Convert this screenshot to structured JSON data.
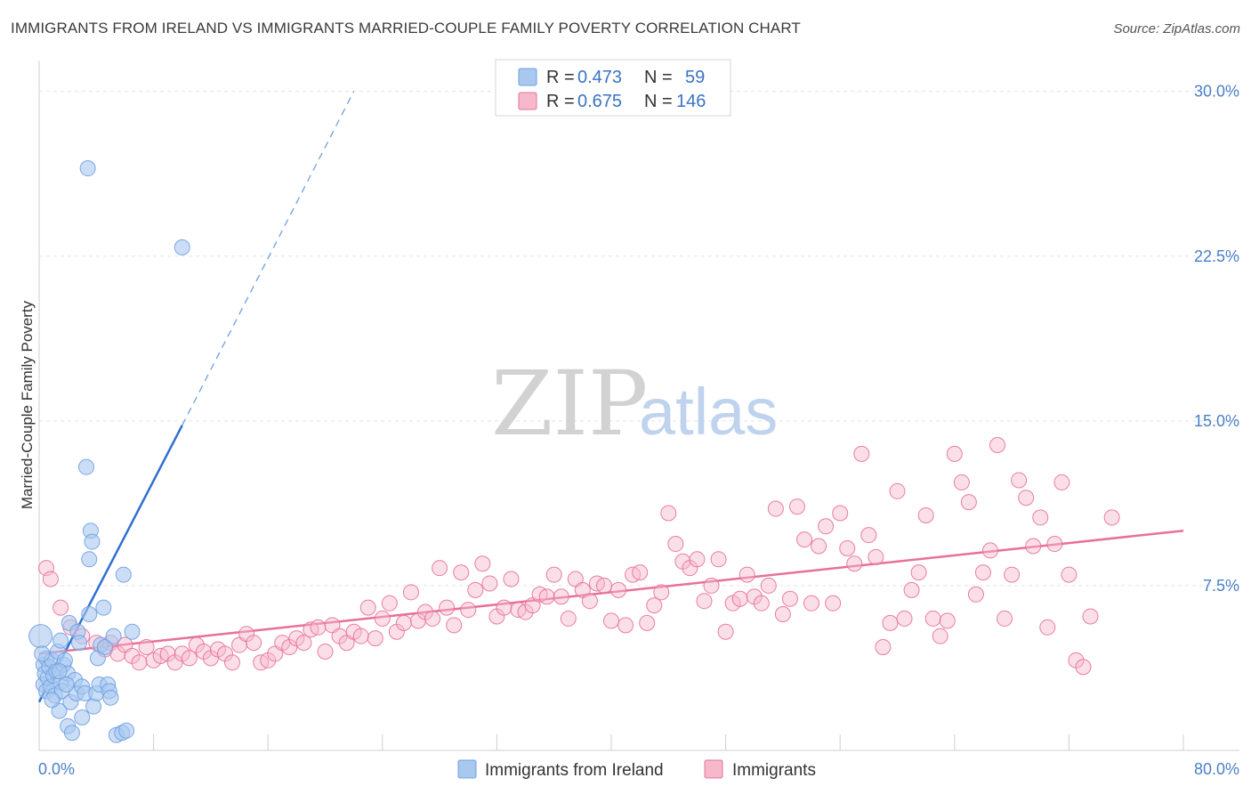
{
  "title": "IMMIGRANTS FROM IRELAND VS IMMIGRANTS MARRIED-COUPLE FAMILY POVERTY CORRELATION CHART",
  "source": "Source: ZipAtlas.com",
  "watermark": {
    "zip": "ZIP",
    "atlas": "atlas"
  },
  "legend_top": [
    {
      "r_label": "R =",
      "r_value": "0.473",
      "n_label": "N =",
      "n_value": "59",
      "color": "#a9c8f0"
    },
    {
      "r_label": "R =",
      "r_value": "0.675",
      "n_label": "N =",
      "n_value": "146",
      "color": "#f6b8cb"
    }
  ],
  "chart_data": {
    "type": "scatter",
    "title": "IMMIGRANTS FROM IRELAND VS IMMIGRANTS MARRIED-COUPLE FAMILY POVERTY CORRELATION CHART",
    "xlabel": "",
    "ylabel": "Married-Couple Family Poverty",
    "xlim": [
      0,
      80
    ],
    "ylim": [
      0,
      31
    ],
    "x_tick_labels": [
      "0.0%",
      "80.0%"
    ],
    "y_ticks": [
      7.5,
      15.0,
      22.5,
      30.0
    ],
    "y_tick_labels": [
      "7.5%",
      "15.0%",
      "22.5%",
      "30.0%"
    ],
    "grid": true,
    "legend_position": "bottom-center",
    "series": [
      {
        "name": "Immigrants from Ireland",
        "color": "#6fa0e0",
        "fill": "#a9c8f0",
        "trend": {
          "x0": 0,
          "y0": 2.2,
          "x1": 10,
          "y1": 14.8,
          "dash_to_x": 22,
          "dash_to_y": 30.0
        },
        "points": [
          [
            0.1,
            5.2
          ],
          [
            0.3,
            3.9
          ],
          [
            0.3,
            3.0
          ],
          [
            0.4,
            3.5
          ],
          [
            0.5,
            2.7
          ],
          [
            0.5,
            4.2
          ],
          [
            0.6,
            3.3
          ],
          [
            0.7,
            3.8
          ],
          [
            0.8,
            2.9
          ],
          [
            0.9,
            4.1
          ],
          [
            1.0,
            3.4
          ],
          [
            1.1,
            2.5
          ],
          [
            1.2,
            3.6
          ],
          [
            1.3,
            4.5
          ],
          [
            1.4,
            1.8
          ],
          [
            1.5,
            3.1
          ],
          [
            1.5,
            5.0
          ],
          [
            1.6,
            2.7
          ],
          [
            1.7,
            3.9
          ],
          [
            1.8,
            4.1
          ],
          [
            2.0,
            1.1
          ],
          [
            2.0,
            3.5
          ],
          [
            2.1,
            5.8
          ],
          [
            2.2,
            2.2
          ],
          [
            2.3,
            0.8
          ],
          [
            2.5,
            3.2
          ],
          [
            2.6,
            2.6
          ],
          [
            2.7,
            5.4
          ],
          [
            2.8,
            4.9
          ],
          [
            3.0,
            1.5
          ],
          [
            3.0,
            2.9
          ],
          [
            3.2,
            2.6
          ],
          [
            3.3,
            12.9
          ],
          [
            3.5,
            6.2
          ],
          [
            3.6,
            10.0
          ],
          [
            3.7,
            9.5
          ],
          [
            3.8,
            2.0
          ],
          [
            3.5,
            8.7
          ],
          [
            4.0,
            2.6
          ],
          [
            4.1,
            4.2
          ],
          [
            4.2,
            3.0
          ],
          [
            4.3,
            4.8
          ],
          [
            4.5,
            6.5
          ],
          [
            4.6,
            4.7
          ],
          [
            4.8,
            3.0
          ],
          [
            4.9,
            2.7
          ],
          [
            5.0,
            2.4
          ],
          [
            5.2,
            5.2
          ],
          [
            5.4,
            0.7
          ],
          [
            5.8,
            0.8
          ],
          [
            5.9,
            8.0
          ],
          [
            6.1,
            0.9
          ],
          [
            6.5,
            5.4
          ],
          [
            3.4,
            26.5
          ],
          [
            10.0,
            22.9
          ],
          [
            1.4,
            3.6
          ],
          [
            0.2,
            4.4
          ],
          [
            0.9,
            2.3
          ],
          [
            1.9,
            3.0
          ]
        ]
      },
      {
        "name": "Immigrants",
        "color": "#e8709a",
        "fill": "#f6b8cb",
        "trend": {
          "x0": 0,
          "y0": 4.4,
          "x1": 80,
          "y1": 10.0
        },
        "points": [
          [
            0.5,
            8.3
          ],
          [
            0.8,
            7.8
          ],
          [
            1.5,
            6.5
          ],
          [
            2.2,
            5.6
          ],
          [
            3.0,
            5.2
          ],
          [
            4.0,
            4.9
          ],
          [
            4.6,
            4.6
          ],
          [
            5.0,
            4.9
          ],
          [
            5.5,
            4.4
          ],
          [
            6.0,
            4.8
          ],
          [
            6.5,
            4.3
          ],
          [
            7.0,
            4.0
          ],
          [
            7.5,
            4.7
          ],
          [
            8.0,
            4.1
          ],
          [
            8.5,
            4.3
          ],
          [
            9.0,
            4.4
          ],
          [
            9.5,
            4.0
          ],
          [
            10.0,
            4.4
          ],
          [
            10.5,
            4.2
          ],
          [
            11.0,
            4.8
          ],
          [
            11.5,
            4.5
          ],
          [
            12.0,
            4.2
          ],
          [
            12.5,
            4.6
          ],
          [
            13.0,
            4.4
          ],
          [
            13.5,
            4.0
          ],
          [
            14.0,
            4.8
          ],
          [
            14.5,
            5.3
          ],
          [
            15.0,
            4.9
          ],
          [
            15.5,
            4.0
          ],
          [
            16.0,
            4.1
          ],
          [
            16.5,
            4.4
          ],
          [
            17.0,
            4.9
          ],
          [
            17.5,
            4.7
          ],
          [
            18.0,
            5.1
          ],
          [
            18.5,
            4.9
          ],
          [
            19.0,
            5.5
          ],
          [
            19.5,
            5.6
          ],
          [
            20.0,
            4.5
          ],
          [
            20.5,
            5.7
          ],
          [
            21.0,
            5.2
          ],
          [
            21.5,
            4.9
          ],
          [
            22.0,
            5.4
          ],
          [
            22.5,
            5.2
          ],
          [
            23.0,
            6.5
          ],
          [
            23.5,
            5.1
          ],
          [
            24.0,
            6.0
          ],
          [
            24.5,
            6.7
          ],
          [
            25.0,
            5.4
          ],
          [
            25.5,
            5.8
          ],
          [
            26.0,
            7.2
          ],
          [
            26.5,
            5.9
          ],
          [
            27.0,
            6.3
          ],
          [
            27.5,
            6.0
          ],
          [
            28.0,
            8.3
          ],
          [
            28.5,
            6.5
          ],
          [
            29.0,
            5.7
          ],
          [
            29.5,
            8.1
          ],
          [
            30.0,
            6.4
          ],
          [
            30.5,
            7.3
          ],
          [
            31.0,
            8.5
          ],
          [
            31.5,
            7.6
          ],
          [
            32.0,
            6.1
          ],
          [
            32.5,
            6.5
          ],
          [
            33.0,
            7.8
          ],
          [
            33.5,
            6.4
          ],
          [
            34.0,
            6.3
          ],
          [
            34.5,
            6.6
          ],
          [
            35.0,
            7.1
          ],
          [
            35.5,
            7.0
          ],
          [
            36.0,
            8.0
          ],
          [
            36.5,
            7.0
          ],
          [
            37.0,
            6.0
          ],
          [
            37.5,
            7.8
          ],
          [
            38.0,
            7.3
          ],
          [
            38.5,
            6.8
          ],
          [
            39.0,
            7.6
          ],
          [
            39.5,
            7.5
          ],
          [
            40.0,
            5.9
          ],
          [
            40.5,
            7.3
          ],
          [
            41.0,
            5.7
          ],
          [
            41.5,
            8.0
          ],
          [
            42.0,
            8.1
          ],
          [
            42.5,
            5.8
          ],
          [
            43.0,
            6.6
          ],
          [
            43.5,
            7.2
          ],
          [
            44.0,
            10.8
          ],
          [
            44.5,
            9.4
          ],
          [
            45.0,
            8.6
          ],
          [
            45.5,
            8.3
          ],
          [
            46.0,
            8.7
          ],
          [
            46.5,
            6.8
          ],
          [
            47.0,
            7.5
          ],
          [
            47.5,
            8.7
          ],
          [
            48.0,
            5.4
          ],
          [
            48.5,
            6.7
          ],
          [
            49.0,
            6.9
          ],
          [
            49.5,
            8.0
          ],
          [
            50.0,
            7.0
          ],
          [
            50.5,
            6.7
          ],
          [
            51.0,
            7.5
          ],
          [
            51.5,
            11.0
          ],
          [
            52.0,
            6.2
          ],
          [
            52.5,
            6.9
          ],
          [
            53.0,
            11.1
          ],
          [
            53.5,
            9.6
          ],
          [
            54.0,
            6.7
          ],
          [
            54.5,
            9.3
          ],
          [
            55.0,
            10.2
          ],
          [
            55.5,
            6.7
          ],
          [
            56.0,
            10.8
          ],
          [
            56.5,
            9.2
          ],
          [
            57.0,
            8.5
          ],
          [
            57.5,
            13.5
          ],
          [
            58.0,
            9.8
          ],
          [
            58.5,
            8.8
          ],
          [
            59.0,
            4.7
          ],
          [
            59.5,
            5.8
          ],
          [
            60.0,
            11.8
          ],
          [
            60.5,
            6.0
          ],
          [
            61.0,
            7.3
          ],
          [
            61.5,
            8.1
          ],
          [
            62.0,
            10.7
          ],
          [
            62.5,
            6.0
          ],
          [
            63.0,
            5.2
          ],
          [
            63.5,
            5.9
          ],
          [
            64.0,
            13.5
          ],
          [
            64.5,
            12.2
          ],
          [
            65.0,
            11.3
          ],
          [
            65.5,
            7.1
          ],
          [
            66.0,
            8.1
          ],
          [
            66.5,
            9.1
          ],
          [
            67.0,
            13.9
          ],
          [
            67.5,
            6.0
          ],
          [
            68.0,
            8.0
          ],
          [
            68.5,
            12.3
          ],
          [
            69.0,
            11.5
          ],
          [
            69.5,
            9.3
          ],
          [
            70.0,
            10.6
          ],
          [
            70.5,
            5.6
          ],
          [
            71.0,
            9.4
          ],
          [
            71.5,
            12.2
          ],
          [
            72.0,
            8.0
          ],
          [
            72.5,
            4.1
          ],
          [
            73.0,
            3.8
          ],
          [
            73.5,
            6.1
          ],
          [
            75.0,
            10.6
          ]
        ]
      }
    ]
  },
  "legend_bottom": [
    {
      "label": "Immigrants from Ireland",
      "color": "#a9c8f0"
    },
    {
      "label": "Immigrants",
      "color": "#f6b8cb"
    }
  ]
}
